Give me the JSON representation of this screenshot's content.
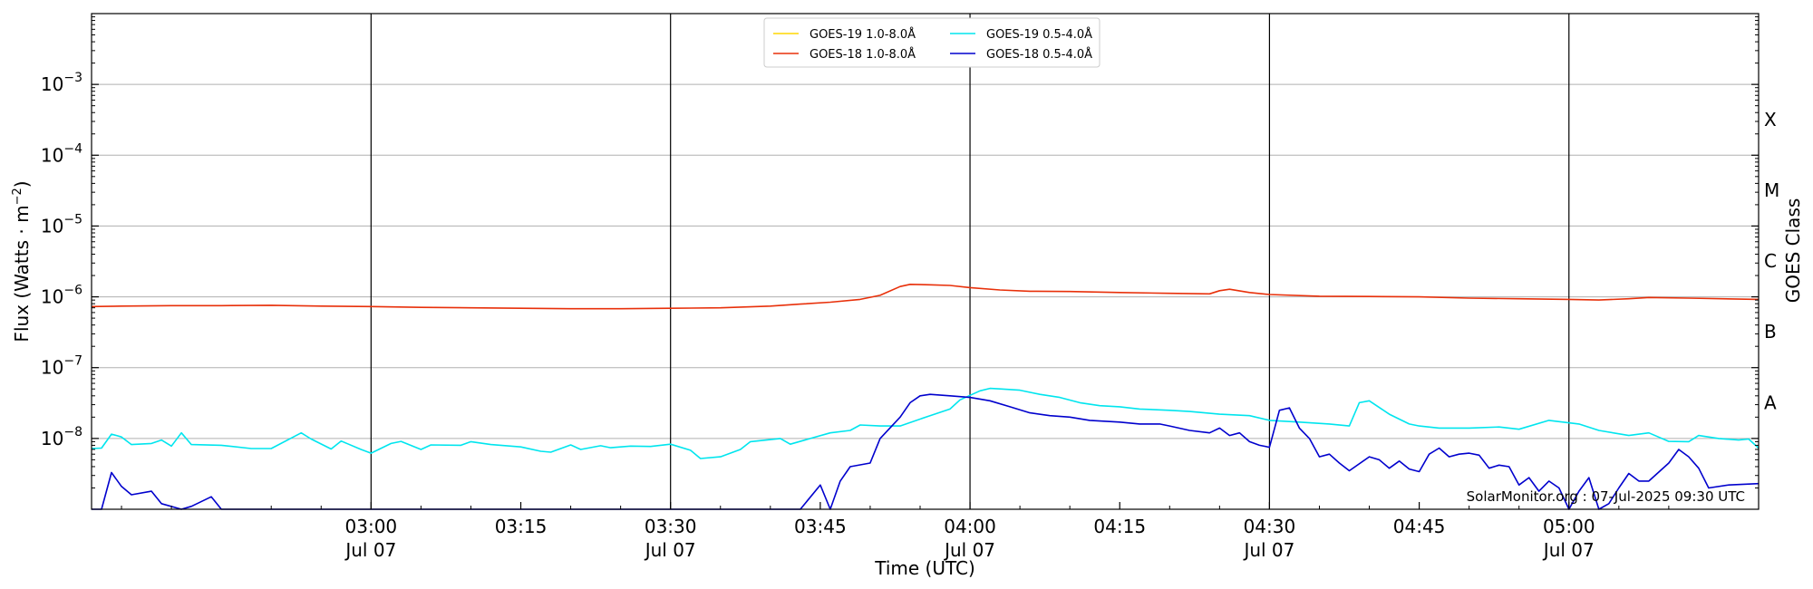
{
  "chart_data": {
    "type": "line",
    "title": "",
    "xlabel": "Time (UTC)",
    "ylabel_main": "Flux (Watts · m",
    "ylabel_sup": "−2",
    "ylabel_close": ")",
    "ylabel_right": "GOES Class",
    "yscale": "log",
    "ylim": [
      1e-09,
      0.01
    ],
    "xlim": [
      "02:32",
      "05:19"
    ],
    "grid": "horizontal at decades",
    "legend_position": "top-center",
    "watermark": "SolarMonitor.org : 07-Jul-2025 09:30 UTC",
    "y_ticks": [
      {
        "value": 1e-08,
        "base": "10",
        "exp": "−8"
      },
      {
        "value": 1e-07,
        "base": "10",
        "exp": "−7"
      },
      {
        "value": 1e-06,
        "base": "10",
        "exp": "−6"
      },
      {
        "value": 1e-05,
        "base": "10",
        "exp": "−5"
      },
      {
        "value": 0.0001,
        "base": "10",
        "exp": "−4"
      },
      {
        "value": 0.001,
        "base": "10",
        "exp": "−3"
      }
    ],
    "x_ticks": [
      {
        "time": "03:00",
        "time_label": "03:00",
        "date_label": "Jul 07",
        "major": true
      },
      {
        "time": "03:15",
        "time_label": "03:15",
        "date_label": "",
        "major": false
      },
      {
        "time": "03:30",
        "time_label": "03:30",
        "date_label": "Jul 07",
        "major": true
      },
      {
        "time": "03:45",
        "time_label": "03:45",
        "date_label": "",
        "major": false
      },
      {
        "time": "04:00",
        "time_label": "04:00",
        "date_label": "Jul 07",
        "major": true
      },
      {
        "time": "04:15",
        "time_label": "04:15",
        "date_label": "",
        "major": false
      },
      {
        "time": "04:30",
        "time_label": "04:30",
        "date_label": "Jul 07",
        "major": true
      },
      {
        "time": "04:45",
        "time_label": "04:45",
        "date_label": "",
        "major": false
      },
      {
        "time": "05:00",
        "time_label": "05:00",
        "date_label": "Jul 07",
        "major": true
      }
    ],
    "goes_classes": [
      {
        "label": "A",
        "value": 3.2e-08
      },
      {
        "label": "B",
        "value": 3.2e-07
      },
      {
        "label": "C",
        "value": 3.2e-06
      },
      {
        "label": "M",
        "value": 3.2e-05
      },
      {
        "label": "X",
        "value": 0.00032
      }
    ],
    "series": [
      {
        "name": "GOES-19 1.0-8.0Å",
        "color": "#ffd700",
        "points": []
      },
      {
        "name": "GOES-18 1.0-8.0Å",
        "color": "#e8300a",
        "points": [
          [
            "02:32",
            7.3e-07
          ],
          [
            "02:35",
            7.4e-07
          ],
          [
            "02:40",
            7.5e-07
          ],
          [
            "02:45",
            7.5e-07
          ],
          [
            "02:50",
            7.6e-07
          ],
          [
            "02:55",
            7.4e-07
          ],
          [
            "03:00",
            7.3e-07
          ],
          [
            "03:05",
            7.1e-07
          ],
          [
            "03:10",
            7e-07
          ],
          [
            "03:15",
            6.9e-07
          ],
          [
            "03:20",
            6.8e-07
          ],
          [
            "03:25",
            6.8e-07
          ],
          [
            "03:30",
            6.9e-07
          ],
          [
            "03:35",
            7e-07
          ],
          [
            "03:40",
            7.4e-07
          ],
          [
            "03:43",
            7.9e-07
          ],
          [
            "03:46",
            8.4e-07
          ],
          [
            "03:49",
            9.2e-07
          ],
          [
            "03:51",
            1.05e-06
          ],
          [
            "03:53",
            1.4e-06
          ],
          [
            "03:54",
            1.5e-06
          ],
          [
            "03:56",
            1.48e-06
          ],
          [
            "03:58",
            1.45e-06
          ],
          [
            "04:00",
            1.35e-06
          ],
          [
            "04:03",
            1.25e-06
          ],
          [
            "04:06",
            1.2e-06
          ],
          [
            "04:10",
            1.19e-06
          ],
          [
            "04:15",
            1.15e-06
          ],
          [
            "04:20",
            1.12e-06
          ],
          [
            "04:24",
            1.1e-06
          ],
          [
            "04:25",
            1.22e-06
          ],
          [
            "04:26",
            1.28e-06
          ],
          [
            "04:28",
            1.15e-06
          ],
          [
            "04:30",
            1.08e-06
          ],
          [
            "04:35",
            1.02e-06
          ],
          [
            "04:40",
            1.01e-06
          ],
          [
            "04:45",
            1e-06
          ],
          [
            "04:50",
            9.6e-07
          ],
          [
            "04:55",
            9.4e-07
          ],
          [
            "05:00",
            9.2e-07
          ],
          [
            "05:03",
            9e-07
          ],
          [
            "05:06",
            9.4e-07
          ],
          [
            "05:08",
            9.8e-07
          ],
          [
            "05:12",
            9.6e-07
          ],
          [
            "05:19",
            9.2e-07
          ]
        ]
      },
      {
        "name": "GOES-19 0.5-4.0Å",
        "color": "#00e5ee",
        "points": [
          [
            "02:32",
            7.2e-09
          ],
          [
            "02:33",
            7.3e-09
          ],
          [
            "02:34",
            1.15e-08
          ],
          [
            "02:35",
            1.05e-08
          ],
          [
            "02:36",
            8.2e-09
          ],
          [
            "02:38",
            8.5e-09
          ],
          [
            "02:39",
            9.5e-09
          ],
          [
            "02:40",
            7.8e-09
          ],
          [
            "02:41",
            1.2e-08
          ],
          [
            "02:42",
            8.2e-09
          ],
          [
            "02:45",
            8e-09
          ],
          [
            "02:48",
            7.2e-09
          ],
          [
            "02:50",
            7.2e-09
          ],
          [
            "02:53",
            1.2e-08
          ],
          [
            "02:54",
            9.8e-09
          ],
          [
            "02:56",
            7.1e-09
          ],
          [
            "02:57",
            9.2e-09
          ],
          [
            "02:59",
            7e-09
          ],
          [
            "03:00",
            6.2e-09
          ],
          [
            "03:02",
            8.5e-09
          ],
          [
            "03:03",
            9.1e-09
          ],
          [
            "03:05",
            7e-09
          ],
          [
            "03:06",
            8.1e-09
          ],
          [
            "03:09",
            8e-09
          ],
          [
            "03:10",
            9e-09
          ],
          [
            "03:12",
            8.2e-09
          ],
          [
            "03:15",
            7.6e-09
          ],
          [
            "03:17",
            6.6e-09
          ],
          [
            "03:18",
            6.4e-09
          ],
          [
            "03:20",
            8.1e-09
          ],
          [
            "03:21",
            7e-09
          ],
          [
            "03:23",
            7.9e-09
          ],
          [
            "03:24",
            7.4e-09
          ],
          [
            "03:26",
            7.8e-09
          ],
          [
            "03:28",
            7.7e-09
          ],
          [
            "03:30",
            8.3e-09
          ],
          [
            "03:32",
            6.8e-09
          ],
          [
            "03:33",
            5.2e-09
          ],
          [
            "03:35",
            5.5e-09
          ],
          [
            "03:37",
            7e-09
          ],
          [
            "03:38",
            9e-09
          ],
          [
            "03:41",
            1e-08
          ],
          [
            "03:42",
            8.3e-09
          ],
          [
            "03:44",
            1e-08
          ],
          [
            "03:46",
            1.2e-08
          ],
          [
            "03:48",
            1.3e-08
          ],
          [
            "03:49",
            1.55e-08
          ],
          [
            "03:51",
            1.5e-08
          ],
          [
            "03:53",
            1.5e-08
          ],
          [
            "03:56",
            2.1e-08
          ],
          [
            "03:58",
            2.6e-08
          ],
          [
            "03:59",
            3.5e-08
          ],
          [
            "04:01",
            4.7e-08
          ],
          [
            "04:02",
            5.1e-08
          ],
          [
            "04:03",
            5e-08
          ],
          [
            "04:05",
            4.8e-08
          ],
          [
            "04:07",
            4.2e-08
          ],
          [
            "04:09",
            3.8e-08
          ],
          [
            "04:11",
            3.2e-08
          ],
          [
            "04:13",
            2.9e-08
          ],
          [
            "04:15",
            2.8e-08
          ],
          [
            "04:17",
            2.6e-08
          ],
          [
            "04:20",
            2.5e-08
          ],
          [
            "04:22",
            2.4e-08
          ],
          [
            "04:25",
            2.2e-08
          ],
          [
            "04:28",
            2.1e-08
          ],
          [
            "04:30",
            1.8e-08
          ],
          [
            "04:33",
            1.7e-08
          ],
          [
            "04:36",
            1.6e-08
          ],
          [
            "04:38",
            1.5e-08
          ],
          [
            "04:39",
            3.2e-08
          ],
          [
            "04:40",
            3.4e-08
          ],
          [
            "04:42",
            2.2e-08
          ],
          [
            "04:44",
            1.6e-08
          ],
          [
            "04:45",
            1.5e-08
          ],
          [
            "04:47",
            1.4e-08
          ],
          [
            "04:50",
            1.4e-08
          ],
          [
            "04:53",
            1.45e-08
          ],
          [
            "04:55",
            1.35e-08
          ],
          [
            "04:58",
            1.8e-08
          ],
          [
            "05:01",
            1.6e-08
          ],
          [
            "05:03",
            1.3e-08
          ],
          [
            "05:06",
            1.1e-08
          ],
          [
            "05:08",
            1.2e-08
          ],
          [
            "05:10",
            9.1e-09
          ],
          [
            "05:12",
            9e-09
          ],
          [
            "05:13",
            1.1e-08
          ],
          [
            "05:15",
            1e-08
          ],
          [
            "05:17",
            9.5e-09
          ],
          [
            "05:18",
            9.8e-09
          ],
          [
            "05:19",
            7.3e-09
          ]
        ]
      },
      {
        "name": "GOES-18 0.5-4.0Å",
        "color": "#0000cd",
        "points": [
          [
            "02:32",
            1e-09
          ],
          [
            "02:33",
            1e-09
          ],
          [
            "02:34",
            3.3e-09
          ],
          [
            "02:35",
            2.1e-09
          ],
          [
            "02:36",
            1.6e-09
          ],
          [
            "02:38",
            1.8e-09
          ],
          [
            "02:39",
            1.2e-09
          ],
          [
            "02:41",
            1e-09
          ],
          [
            "02:42",
            1.1e-09
          ],
          [
            "02:44",
            1.5e-09
          ],
          [
            "02:45",
            1e-09
          ],
          [
            "03:30",
            1e-09
          ],
          [
            "03:43",
            1e-09
          ],
          [
            "03:45",
            2.2e-09
          ],
          [
            "03:46",
            1e-09
          ],
          [
            "03:47",
            2.5e-09
          ],
          [
            "03:48",
            4e-09
          ],
          [
            "03:50",
            4.5e-09
          ],
          [
            "03:51",
            1e-08
          ],
          [
            "03:53",
            2e-08
          ],
          [
            "03:54",
            3.2e-08
          ],
          [
            "03:55",
            4e-08
          ],
          [
            "03:56",
            4.2e-08
          ],
          [
            "03:58",
            4e-08
          ],
          [
            "04:00",
            3.8e-08
          ],
          [
            "04:02",
            3.4e-08
          ],
          [
            "04:04",
            2.8e-08
          ],
          [
            "04:06",
            2.3e-08
          ],
          [
            "04:08",
            2.1e-08
          ],
          [
            "04:10",
            2e-08
          ],
          [
            "04:12",
            1.8e-08
          ],
          [
            "04:15",
            1.7e-08
          ],
          [
            "04:17",
            1.6e-08
          ],
          [
            "04:19",
            1.6e-08
          ],
          [
            "04:20",
            1.5e-08
          ],
          [
            "04:22",
            1.3e-08
          ],
          [
            "04:24",
            1.2e-08
          ],
          [
            "04:25",
            1.4e-08
          ],
          [
            "04:26",
            1.1e-08
          ],
          [
            "04:27",
            1.2e-08
          ],
          [
            "04:28",
            9e-09
          ],
          [
            "04:29",
            8e-09
          ],
          [
            "04:30",
            7.5e-09
          ],
          [
            "04:31",
            2.5e-08
          ],
          [
            "04:32",
            2.7e-08
          ],
          [
            "04:33",
            1.4e-08
          ],
          [
            "04:34",
            1e-08
          ],
          [
            "04:35",
            5.5e-09
          ],
          [
            "04:36",
            6e-09
          ],
          [
            "04:37",
            4.5e-09
          ],
          [
            "04:38",
            3.5e-09
          ],
          [
            "04:40",
            5.5e-09
          ],
          [
            "04:41",
            5e-09
          ],
          [
            "04:42",
            3.8e-09
          ],
          [
            "04:43",
            4.8e-09
          ],
          [
            "04:44",
            3.7e-09
          ],
          [
            "04:45",
            3.4e-09
          ],
          [
            "04:46",
            6e-09
          ],
          [
            "04:47",
            7.3e-09
          ],
          [
            "04:48",
            5.5e-09
          ],
          [
            "04:49",
            6e-09
          ],
          [
            "04:50",
            6.2e-09
          ],
          [
            "04:51",
            5.8e-09
          ],
          [
            "04:52",
            3.8e-09
          ],
          [
            "04:53",
            4.2e-09
          ],
          [
            "04:54",
            4e-09
          ],
          [
            "04:55",
            2.2e-09
          ],
          [
            "04:56",
            2.8e-09
          ],
          [
            "04:57",
            1.8e-09
          ],
          [
            "04:58",
            2.5e-09
          ],
          [
            "04:59",
            2e-09
          ],
          [
            "05:00",
            1e-09
          ],
          [
            "05:01",
            1.8e-09
          ],
          [
            "05:02",
            2.8e-09
          ],
          [
            "05:03",
            1e-09
          ],
          [
            "05:04",
            1.2e-09
          ],
          [
            "05:05",
            2e-09
          ],
          [
            "05:06",
            3.2e-09
          ],
          [
            "05:07",
            2.5e-09
          ],
          [
            "05:08",
            2.5e-09
          ],
          [
            "05:10",
            4.5e-09
          ],
          [
            "05:11",
            7e-09
          ],
          [
            "05:12",
            5.5e-09
          ],
          [
            "05:13",
            3.8e-09
          ],
          [
            "05:14",
            2e-09
          ],
          [
            "05:16",
            2.2e-09
          ],
          [
            "05:19",
            2.3e-09
          ]
        ]
      }
    ]
  }
}
